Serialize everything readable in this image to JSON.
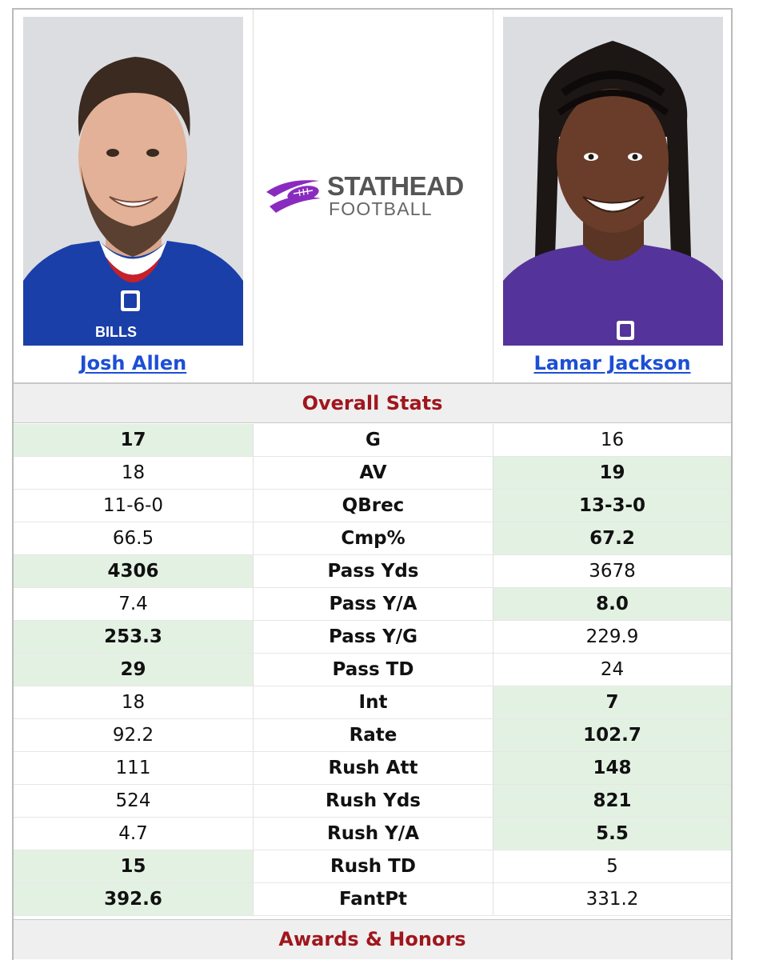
{
  "players": {
    "left": {
      "name": "Josh Allen",
      "jersey_text": "BILLS",
      "jersey_color": "#1a3fa8"
    },
    "right": {
      "name": "Lamar Jackson",
      "jersey_color": "#54349a"
    }
  },
  "logo": {
    "main": "STATHEAD",
    "sub": "FOOTBALL",
    "accent_color": "#8a2bbf"
  },
  "sections": {
    "overall": "Overall Stats",
    "awards": "Awards & Honors"
  },
  "stats": [
    {
      "label": "G",
      "left": "17",
      "right": "16",
      "leader": "left"
    },
    {
      "label": "AV",
      "left": "18",
      "right": "19",
      "leader": "right"
    },
    {
      "label": "QBrec",
      "left": "11-6-0",
      "right": "13-3-0",
      "leader": "right"
    },
    {
      "label": "Cmp%",
      "left": "66.5",
      "right": "67.2",
      "leader": "right"
    },
    {
      "label": "Pass Yds",
      "left": "4306",
      "right": "3678",
      "leader": "left"
    },
    {
      "label": "Pass Y/A",
      "left": "7.4",
      "right": "8.0",
      "leader": "right"
    },
    {
      "label": "Pass Y/G",
      "left": "253.3",
      "right": "229.9",
      "leader": "left"
    },
    {
      "label": "Pass TD",
      "left": "29",
      "right": "24",
      "leader": "left"
    },
    {
      "label": "Int",
      "left": "18",
      "right": "7",
      "leader": "right"
    },
    {
      "label": "Rate",
      "left": "92.2",
      "right": "102.7",
      "leader": "right"
    },
    {
      "label": "Rush Att",
      "left": "111",
      "right": "148",
      "leader": "right"
    },
    {
      "label": "Rush Yds",
      "left": "524",
      "right": "821",
      "leader": "right"
    },
    {
      "label": "Rush Y/A",
      "left": "4.7",
      "right": "5.5",
      "leader": "right"
    },
    {
      "label": "Rush TD",
      "left": "15",
      "right": "5",
      "leader": "left"
    },
    {
      "label": "FantPt",
      "left": "392.6",
      "right": "331.2",
      "leader": "left"
    }
  ],
  "colors": {
    "leader_bg": "#e3f1e3",
    "section_title": "#a0161d",
    "link": "#1c4fd6"
  }
}
